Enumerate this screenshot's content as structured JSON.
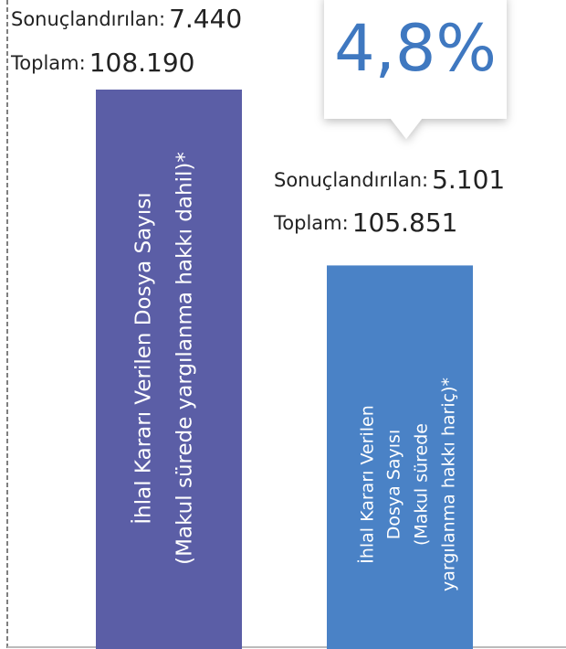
{
  "chart_data": {
    "type": "bar",
    "categories": [
      [
        "İhlal Kararı Verilen Dosya Sayısı",
        "(Makul sürede yargılanma hakkı dahil)*"
      ],
      [
        "İhlal Kararı Verilen",
        "Dosya Sayısı",
        "(Makul sürede",
        "yargılanma hakkı hariç)*"
      ]
    ],
    "values": [
      7440,
      5101
    ],
    "value_labels": [
      "7.440",
      "5.101"
    ],
    "value_name": "Sonuçlandırılan:",
    "totals": [
      108190,
      105851
    ],
    "total_labels": [
      "108.190",
      "105.851"
    ],
    "total_name": "Toplam:",
    "callout": {
      "value": 4.8,
      "label": "4,8%"
    },
    "colors": [
      "#5b5ea6",
      "#4a82c6"
    ],
    "callout_color": "#3f78c0"
  }
}
